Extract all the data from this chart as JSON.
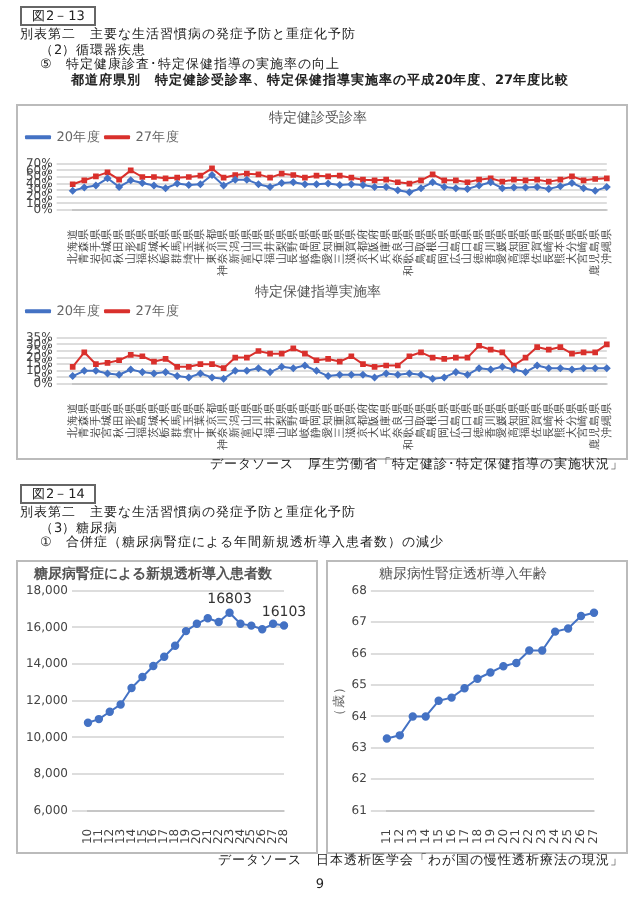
{
  "chart_data": [
    {
      "type": "line",
      "title": "特定健診受診率",
      "annotations": [
        "図2－13",
        "別表第二　主要な生活習慣病の発症予防と重症化予防",
        "（2）循環器疾患",
        "⑤　特定健康診査･特定保健指導の実施率の向上",
        "都道府県別　特定健診受診率、特定保健指導実施率の平成20年度、27年度比較"
      ],
      "categories": [
        "北海道",
        "青森県",
        "岩手県",
        "宮城県",
        "秋田県",
        "山形県",
        "福島県",
        "茨城県",
        "栃木県",
        "群馬県",
        "埼玉県",
        "千葉県",
        "東京都",
        "神奈川県",
        "新潟県",
        "富山県",
        "石川県",
        "福井県",
        "山梨県",
        "長野県",
        "岐阜県",
        "静岡県",
        "愛知県",
        "三重県",
        "滋賀県",
        "京都府",
        "大阪府",
        "兵庫県",
        "奈良県",
        "和歌山県",
        "鳥取県",
        "島根県",
        "岡山県",
        "広島県",
        "山口県",
        "徳島県",
        "香川県",
        "愛媛県",
        "高知県",
        "福岡県",
        "佐賀県",
        "長崎県",
        "熊本県",
        "大分県",
        "宮崎県",
        "鹿児島県",
        "沖縄県"
      ],
      "series": [
        {
          "name": "20年度",
          "color": "#4472c4",
          "marker": "diamond",
          "values": [
            29,
            34,
            37,
            48,
            35,
            45,
            41,
            37,
            33,
            40,
            38,
            39,
            53,
            37,
            46,
            46,
            39,
            35,
            41,
            42,
            39,
            39,
            40,
            38,
            39,
            38,
            35,
            35,
            30,
            27,
            33,
            42,
            35,
            33,
            32,
            37,
            42,
            33,
            34,
            34,
            35,
            32,
            36,
            41,
            33,
            29,
            35
          ]
        },
        {
          "name": "27年度",
          "color": "#d9302c",
          "marker": "square",
          "values": [
            39,
            45,
            51,
            57,
            46,
            60,
            50,
            50,
            48,
            49,
            50,
            52,
            63,
            49,
            53,
            55,
            54,
            49,
            55,
            53,
            49,
            52,
            51,
            52,
            49,
            46,
            45,
            46,
            42,
            40,
            45,
            54,
            45,
            45,
            42,
            46,
            48,
            43,
            46,
            45,
            46,
            43,
            46,
            51,
            45,
            47,
            48
          ]
        }
      ],
      "ylim": [
        0,
        70
      ],
      "yticks": [
        {
          "value": 0,
          "label": "0%"
        },
        {
          "value": 10,
          "label": "10%"
        },
        {
          "value": 20,
          "label": "20%"
        },
        {
          "value": 30,
          "label": "30%"
        },
        {
          "value": 40,
          "label": "40%"
        },
        {
          "value": 50,
          "label": "50%"
        },
        {
          "value": 60,
          "label": "60%"
        },
        {
          "value": 70,
          "label": "70%"
        }
      ],
      "grid": "y",
      "legend": "top left",
      "line_style": "solid"
    },
    {
      "type": "line",
      "title": "特定保健指導実施率",
      "annotations": [
        "データソース　厚生労働省「特定健診･特定保健指導の実施状況」"
      ],
      "categories": [
        "北海道",
        "青森県",
        "岩手県",
        "宮城県",
        "秋田県",
        "山形県",
        "福島県",
        "茨城県",
        "栃木県",
        "群馬県",
        "埼玉県",
        "千葉県",
        "東京都",
        "神奈川県",
        "新潟県",
        "富山県",
        "石川県",
        "福井県",
        "山梨県",
        "長野県",
        "岐阜県",
        "静岡県",
        "愛知県",
        "三重県",
        "滋賀県",
        "京都府",
        "大阪府",
        "兵庫県",
        "奈良県",
        "和歌山県",
        "鳥取県",
        "島根県",
        "岡山県",
        "広島県",
        "山口県",
        "徳島県",
        "香川県",
        "愛媛県",
        "高知県",
        "福岡県",
        "佐賀県",
        "長崎県",
        "熊本県",
        "大分県",
        "宮崎県",
        "鹿児島県",
        "沖縄県"
      ],
      "series": [
        {
          "name": "20年度",
          "color": "#4472c4",
          "marker": "diamond",
          "values": [
            6,
            10,
            10,
            8,
            7,
            11,
            9,
            8,
            9,
            6,
            5,
            8,
            5,
            4,
            10,
            10,
            12,
            9,
            13,
            12,
            14,
            10,
            6,
            7,
            7,
            7,
            5,
            8,
            7,
            8,
            7,
            4,
            5,
            9,
            7,
            12,
            11,
            13,
            11,
            9,
            14,
            12,
            12,
            11,
            12,
            12,
            12
          ]
        },
        {
          "name": "27年度",
          "color": "#d9302c",
          "marker": "square",
          "values": [
            13,
            24,
            15,
            16,
            18,
            22,
            21,
            17,
            19,
            13,
            13,
            15,
            15,
            12,
            20,
            20,
            25,
            23,
            23,
            27,
            23,
            18,
            19,
            17,
            21,
            15,
            13,
            14,
            14,
            21,
            24,
            20,
            19,
            20,
            20,
            29,
            26,
            24,
            14,
            20,
            28,
            26,
            28,
            23,
            24,
            24,
            30
          ]
        }
      ],
      "ylim": [
        0,
        35
      ],
      "yticks": [
        {
          "value": 0,
          "label": "0%"
        },
        {
          "value": 5,
          "label": "5%"
        },
        {
          "value": 10,
          "label": "10%"
        },
        {
          "value": 15,
          "label": "15%"
        },
        {
          "value": 20,
          "label": "20%"
        },
        {
          "value": 25,
          "label": "25%"
        },
        {
          "value": 30,
          "label": "30%"
        },
        {
          "value": 35,
          "label": "35%"
        }
      ],
      "grid": "y",
      "legend": "top left",
      "line_style": "solid"
    },
    {
      "type": "line",
      "title": "糖尿病腎症による新規透析導入患者数",
      "annotations": [
        "図2－14",
        "別表第二　主要な生活習慣病の発症予防と重症化予防",
        "（3）糖尿病",
        "①　合併症（糖尿病腎症による年間新規透析導入患者数）の減少"
      ],
      "categories": [
        "10",
        "11",
        "12",
        "13",
        "14",
        "15",
        "16",
        "17",
        "18",
        "19",
        "20",
        "21",
        "22",
        "23",
        "24",
        "25",
        "26",
        "27",
        "28"
      ],
      "series": [
        {
          "color": "#4472c4",
          "values": [
            10800,
            11000,
            11400,
            11800,
            12700,
            13300,
            13900,
            14400,
            15000,
            15800,
            16200,
            16500,
            16300,
            16803,
            16200,
            16100,
            15900,
            16200,
            16103
          ],
          "value_labels": [
            null,
            null,
            null,
            null,
            null,
            null,
            null,
            null,
            null,
            null,
            null,
            null,
            null,
            "16803",
            null,
            null,
            null,
            null,
            "16103"
          ]
        }
      ],
      "ylim": [
        6000,
        18000
      ],
      "yticks": [
        {
          "value": 6000,
          "label": "6,000"
        },
        {
          "value": 8000,
          "label": "8,000"
        },
        {
          "value": 10000,
          "label": "10,000"
        },
        {
          "value": 12000,
          "label": "12,000"
        },
        {
          "value": 14000,
          "label": "14,000"
        },
        {
          "value": 16000,
          "label": "16,000"
        },
        {
          "value": 18000,
          "label": "18,000"
        }
      ],
      "grid": "y",
      "marker": "circle",
      "line_style": "solid"
    },
    {
      "type": "line",
      "title": "糖尿病性腎症透析導入年齢",
      "ylabel": "（歳）",
      "annotations": [
        "データソース　日本透析医学会「わが国の慢性透析療法の現況」",
        "9"
      ],
      "categories": [
        "11",
        "12",
        "13",
        "14",
        "15",
        "16",
        "17",
        "18",
        "19",
        "20",
        "21",
        "22",
        "23",
        "24",
        "25",
        "26",
        "27"
      ],
      "series": [
        {
          "color": "#4472c4",
          "values": [
            63.3,
            63.4,
            64.0,
            64.0,
            64.5,
            64.6,
            64.9,
            65.2,
            65.4,
            65.6,
            65.7,
            66.1,
            66.1,
            66.7,
            66.8,
            67.2,
            67.3
          ]
        }
      ],
      "ylim": [
        61,
        68
      ],
      "yticks": [
        61,
        62,
        63,
        64,
        65,
        66,
        67,
        68
      ],
      "grid": "y",
      "marker": "circle",
      "line_style": "solid"
    }
  ]
}
